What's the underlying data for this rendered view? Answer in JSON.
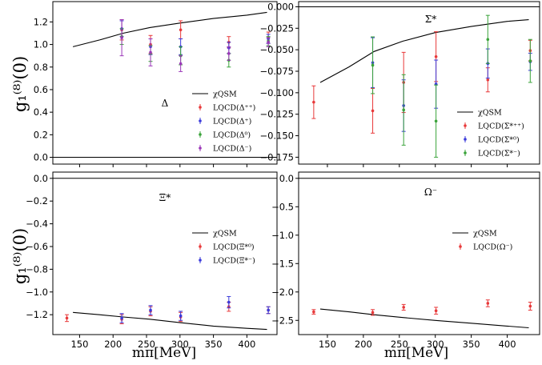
{
  "figure": {
    "ylabel": "g₁⁽⁸⁾(0)",
    "xlabel": "mπ[MeV]",
    "xticks": [
      150,
      200,
      250,
      300,
      350,
      400
    ],
    "colors": {
      "chiqsm": "#000000",
      "red": "#e8393a",
      "blue": "#3b3bdb",
      "green": "#3aa33a",
      "purple": "#9b37b8",
      "zero_line": "#000000"
    }
  },
  "chart_data": [
    {
      "type": "scatter",
      "panel": "top-left",
      "label": "Δ",
      "xlim": [
        110,
        445
      ],
      "ylim": [
        -0.06,
        1.38
      ],
      "yticks": [
        {
          "v": 1.2,
          "t": "1.2"
        },
        {
          "v": 1.0,
          "t": "1.0"
        },
        {
          "v": 0.8,
          "t": "0.8"
        },
        {
          "v": 0.6,
          "t": "0.6"
        },
        {
          "v": 0.4,
          "t": "0.4"
        },
        {
          "v": 0.2,
          "t": "0.2"
        },
        {
          "v": 0.0,
          "t": "0.0"
        }
      ],
      "zero_line": true,
      "legend_position": "lower-right",
      "curve": {
        "name": "χQSM",
        "x": [
          140,
          180,
          215,
          255,
          300,
          350,
          400,
          430
        ],
        "y": [
          0.98,
          1.04,
          1.1,
          1.15,
          1.19,
          1.23,
          1.26,
          1.285
        ]
      },
      "series": [
        {
          "name": "LQCD(Δ⁺⁺)",
          "color": "red",
          "points": [
            [
              213,
              1.13,
              0.09
            ],
            [
              256,
              1.0,
              0.08
            ],
            [
              301,
              1.13,
              0.08
            ],
            [
              373,
              1.02,
              0.05
            ],
            [
              432,
              1.06,
              0.05
            ]
          ]
        },
        {
          "name": "LQCD(Δ⁺)",
          "color": "blue",
          "points": [
            [
              213,
              1.14,
              0.07
            ],
            [
              256,
              0.98,
              0.07
            ],
            [
              301,
              0.98,
              0.07
            ],
            [
              373,
              0.97,
              0.05
            ],
            [
              432,
              1.05,
              0.04
            ]
          ]
        },
        {
          "name": "LQCD(Δ⁰)",
          "color": "green",
          "points": [
            [
              213,
              1.07,
              0.07
            ],
            [
              256,
              0.92,
              0.07
            ],
            [
              301,
              0.9,
              0.08
            ],
            [
              373,
              0.86,
              0.06
            ],
            [
              432,
              1.03,
              0.04
            ]
          ]
        },
        {
          "name": "LQCD(Δ⁻)",
          "color": "purple",
          "points": [
            [
              213,
              1.06,
              0.16
            ],
            [
              256,
              0.93,
              0.12
            ],
            [
              301,
              0.83,
              0.07
            ],
            [
              373,
              0.92,
              0.06
            ],
            [
              432,
              1.02,
              0.04
            ]
          ]
        }
      ]
    },
    {
      "type": "scatter",
      "panel": "top-right",
      "label": "Σ*",
      "xlim": [
        110,
        445
      ],
      "ylim": [
        -0.183,
        0.006
      ],
      "yticks": [
        {
          "v": 0.0,
          "t": "0.000"
        },
        {
          "v": -0.025,
          "t": "−0.025"
        },
        {
          "v": -0.05,
          "t": "−0.050"
        },
        {
          "v": -0.075,
          "t": "−0.075"
        },
        {
          "v": -0.1,
          "t": "−0.100"
        },
        {
          "v": -0.125,
          "t": "−0.125"
        },
        {
          "v": -0.15,
          "t": "−0.150"
        },
        {
          "v": -0.175,
          "t": "−0.175"
        }
      ],
      "zero_line": true,
      "legend_position": "lower-right",
      "curve": {
        "name": "χQSM",
        "x": [
          140,
          180,
          215,
          255,
          300,
          350,
          400,
          430
        ],
        "y": [
          -0.088,
          -0.07,
          -0.052,
          -0.04,
          -0.03,
          -0.023,
          -0.017,
          -0.015
        ]
      },
      "series": [
        {
          "name": "LQCD(Σ*⁺⁺)",
          "color": "red",
          "points": [
            [
              131,
              -0.111,
              0.019
            ],
            [
              213,
              -0.121,
              0.026
            ],
            [
              256,
              -0.088,
              0.035
            ],
            [
              301,
              -0.058,
              0.029
            ],
            [
              373,
              -0.085,
              0.014
            ],
            [
              432,
              -0.051,
              0.012
            ]
          ]
        },
        {
          "name": "LQCD(Σ*⁰)",
          "color": "blue",
          "points": [
            [
              213,
              -0.065,
              0.029
            ],
            [
              256,
              -0.115,
              0.03
            ],
            [
              301,
              -0.09,
              0.028
            ],
            [
              373,
              -0.066,
              0.017
            ],
            [
              432,
              -0.064,
              0.01
            ]
          ]
        },
        {
          "name": "LQCD(Σ*⁻)",
          "color": "green",
          "points": [
            [
              213,
              -0.068,
              0.033
            ],
            [
              256,
              -0.12,
              0.041
            ],
            [
              301,
              -0.133,
              0.042
            ],
            [
              373,
              -0.038,
              0.028
            ],
            [
              432,
              -0.063,
              0.025
            ]
          ]
        }
      ]
    },
    {
      "type": "scatter",
      "panel": "bottom-left",
      "label": "Ξ*",
      "xlim": [
        110,
        445
      ],
      "ylim": [
        -1.375,
        0.055
      ],
      "yticks": [
        {
          "v": 0.0,
          "t": "0.0"
        },
        {
          "v": -0.2,
          "t": "−0.2"
        },
        {
          "v": -0.4,
          "t": "−0.4"
        },
        {
          "v": -0.6,
          "t": "−0.6"
        },
        {
          "v": -0.8,
          "t": "−0.8"
        },
        {
          "v": -1.0,
          "t": "−1.0"
        },
        {
          "v": -1.2,
          "t": "−1.2"
        }
      ],
      "zero_line": true,
      "legend_position": "upper-right",
      "curve": {
        "name": "χQSM",
        "x": [
          140,
          180,
          215,
          255,
          300,
          350,
          400,
          430
        ],
        "y": [
          -1.18,
          -1.2,
          -1.22,
          -1.24,
          -1.27,
          -1.3,
          -1.32,
          -1.33
        ]
      },
      "series": [
        {
          "name": "LQCD(Ξ*⁰)",
          "color": "red",
          "points": [
            [
              131,
              -1.23,
              0.03
            ],
            [
              213,
              -1.24,
              0.04
            ],
            [
              256,
              -1.17,
              0.04
            ],
            [
              301,
              -1.22,
              0.04
            ],
            [
              373,
              -1.13,
              0.04
            ],
            [
              432,
              -1.16,
              0.03
            ]
          ]
        },
        {
          "name": "LQCD(Ξ*⁻)",
          "color": "blue",
          "points": [
            [
              213,
              -1.23,
              0.04
            ],
            [
              256,
              -1.16,
              0.04
            ],
            [
              301,
              -1.21,
              0.04
            ],
            [
              373,
              -1.09,
              0.05
            ],
            [
              432,
              -1.16,
              0.03
            ]
          ]
        }
      ]
    },
    {
      "type": "scatter",
      "panel": "bottom-right",
      "label": "Ω⁻",
      "xlim": [
        110,
        445
      ],
      "ylim": [
        -2.75,
        0.11
      ],
      "yticks": [
        {
          "v": 0.0,
          "t": "0.0"
        },
        {
          "v": -0.5,
          "t": "−0.5"
        },
        {
          "v": -1.0,
          "t": "−1.0"
        },
        {
          "v": -1.5,
          "t": "−1.5"
        },
        {
          "v": -2.0,
          "t": "−2.0"
        },
        {
          "v": -2.5,
          "t": "−2.5"
        }
      ],
      "zero_line": true,
      "legend_position": "upper-right",
      "curve": {
        "name": "χQSM",
        "x": [
          140,
          180,
          215,
          255,
          300,
          350,
          400,
          430
        ],
        "y": [
          -2.3,
          -2.35,
          -2.4,
          -2.45,
          -2.5,
          -2.55,
          -2.6,
          -2.63
        ]
      },
      "series": [
        {
          "name": "LQCD(Ω⁻)",
          "color": "red",
          "points": [
            [
              131,
              -2.35,
              0.04
            ],
            [
              213,
              -2.36,
              0.05
            ],
            [
              256,
              -2.27,
              0.05
            ],
            [
              301,
              -2.33,
              0.06
            ],
            [
              373,
              -2.2,
              0.06
            ],
            [
              432,
              -2.25,
              0.07
            ]
          ]
        }
      ]
    }
  ]
}
